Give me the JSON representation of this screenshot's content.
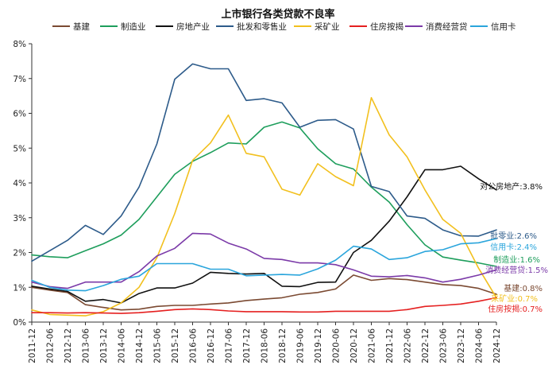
{
  "chart_data": {
    "type": "line",
    "title": "上市银行各类贷款不良率",
    "xlabel": "",
    "ylabel": "",
    "ylim": [
      0,
      8
    ],
    "yticks": [
      0,
      1,
      2,
      3,
      4,
      5,
      6,
      7,
      8
    ],
    "ytick_labels": [
      "0%",
      "1%",
      "2%",
      "3%",
      "4%",
      "5%",
      "6%",
      "7%",
      "8%"
    ],
    "grid": false,
    "legend_position": "top",
    "x": [
      "2011-12",
      "2012-06",
      "2012-12",
      "2013-06",
      "2013-12",
      "2014-06",
      "2014-12",
      "2015-06",
      "2015-12",
      "2016-06",
      "2016-12",
      "2017-06",
      "2017-12",
      "2018-06",
      "2018-12",
      "2019-06",
      "2019-12",
      "2020-06",
      "2020-12",
      "2021-06",
      "2021-12",
      "2022-06",
      "2022-12",
      "2023-06",
      "2023-12",
      "2024-06",
      "2024-12"
    ],
    "x_tick_labels": [
      "2011-12",
      "2012-06",
      "2012-12",
      "2013-06",
      "2013-12",
      "2014-06",
      "2014-12",
      "2015-06",
      "2015-12",
      "2016-06",
      "2016-12",
      "2017-06",
      "2017-12",
      "2018-06",
      "2018-12",
      "2019-06",
      "2019-12",
      "2020-06",
      "2020-12",
      "2021-06",
      "2021-12",
      "2022-06",
      "2022-12",
      "2023-06",
      "2023-12",
      "2024-06",
      "2024-12"
    ],
    "series": [
      {
        "name": "基建",
        "color": "#7b4a32",
        "values": [
          1.0,
          0.92,
          0.85,
          0.5,
          0.42,
          0.35,
          0.37,
          0.45,
          0.48,
          0.48,
          0.52,
          0.55,
          0.62,
          0.66,
          0.7,
          0.8,
          0.85,
          0.95,
          1.35,
          1.2,
          1.25,
          1.22,
          1.15,
          1.08,
          1.05,
          0.97,
          0.8
        ],
        "end_label": "基建:0.8%"
      },
      {
        "name": "制造业",
        "color": "#1e9e5c",
        "values": [
          1.93,
          1.88,
          1.85,
          2.05,
          2.25,
          2.5,
          2.95,
          3.6,
          4.25,
          4.62,
          4.87,
          5.15,
          5.12,
          5.6,
          5.75,
          5.58,
          4.98,
          4.55,
          4.4,
          3.88,
          3.45,
          2.8,
          2.22,
          1.87,
          1.78,
          1.7,
          1.6
        ],
        "end_label": "制造业:1.6%"
      },
      {
        "name": "房地产业",
        "color": "#111111",
        "values": [
          1.03,
          0.95,
          0.88,
          0.6,
          0.65,
          0.55,
          0.82,
          0.98,
          0.98,
          1.12,
          1.43,
          1.4,
          1.38,
          1.4,
          1.03,
          1.02,
          1.14,
          1.15,
          2.0,
          2.35,
          2.9,
          3.6,
          4.38,
          4.38,
          4.48,
          4.12,
          3.8
        ],
        "end_label": "对公房地产:3.8%"
      },
      {
        "name": "批发和零售业",
        "color": "#2d5b8a",
        "values": [
          1.75,
          2.05,
          2.35,
          2.78,
          2.52,
          3.05,
          3.88,
          5.12,
          6.98,
          7.42,
          7.28,
          7.28,
          6.37,
          6.42,
          6.3,
          5.6,
          5.8,
          5.82,
          5.55,
          3.9,
          3.75,
          3.05,
          2.98,
          2.65,
          2.48,
          2.47,
          2.65
        ],
        "end_label": "批零业:2.6%"
      },
      {
        "name": "采矿业",
        "color": "#f2c01e",
        "values": [
          0.35,
          0.22,
          0.2,
          0.18,
          0.3,
          0.55,
          1.0,
          1.85,
          3.12,
          4.65,
          5.15,
          5.95,
          4.85,
          4.75,
          3.82,
          3.65,
          4.55,
          4.18,
          3.92,
          6.45,
          5.38,
          4.75,
          3.8,
          2.95,
          2.55,
          1.55,
          0.7
        ],
        "end_label": "采矿业:0.7%"
      },
      {
        "name": "住房按揭",
        "color": "#e52020",
        "values": [
          0.27,
          0.27,
          0.26,
          0.27,
          0.26,
          0.25,
          0.27,
          0.31,
          0.36,
          0.38,
          0.36,
          0.32,
          0.3,
          0.3,
          0.3,
          0.29,
          0.29,
          0.31,
          0.31,
          0.31,
          0.31,
          0.36,
          0.45,
          0.48,
          0.52,
          0.6,
          0.7
        ],
        "end_label": "住房按揭:0.7%"
      },
      {
        "name": "消费经营贷",
        "color": "#7b3aa8",
        "values": [
          1.15,
          1.02,
          0.97,
          1.15,
          1.15,
          1.15,
          1.45,
          1.9,
          2.12,
          2.55,
          2.53,
          2.27,
          2.1,
          1.83,
          1.8,
          1.7,
          1.7,
          1.65,
          1.5,
          1.32,
          1.3,
          1.34,
          1.27,
          1.15,
          1.23,
          1.35,
          1.5
        ],
        "end_label": "消费经营贷:1.5%"
      },
      {
        "name": "信用卡",
        "color": "#2aa5dc",
        "values": [
          1.2,
          1.0,
          0.92,
          0.9,
          1.05,
          1.23,
          1.32,
          1.68,
          1.68,
          1.68,
          1.52,
          1.52,
          1.33,
          1.35,
          1.37,
          1.35,
          1.53,
          1.78,
          2.18,
          2.1,
          1.8,
          1.85,
          2.03,
          2.08,
          2.25,
          2.28,
          2.4
        ],
        "end_label": "信用卡:2.4%"
      }
    ]
  }
}
